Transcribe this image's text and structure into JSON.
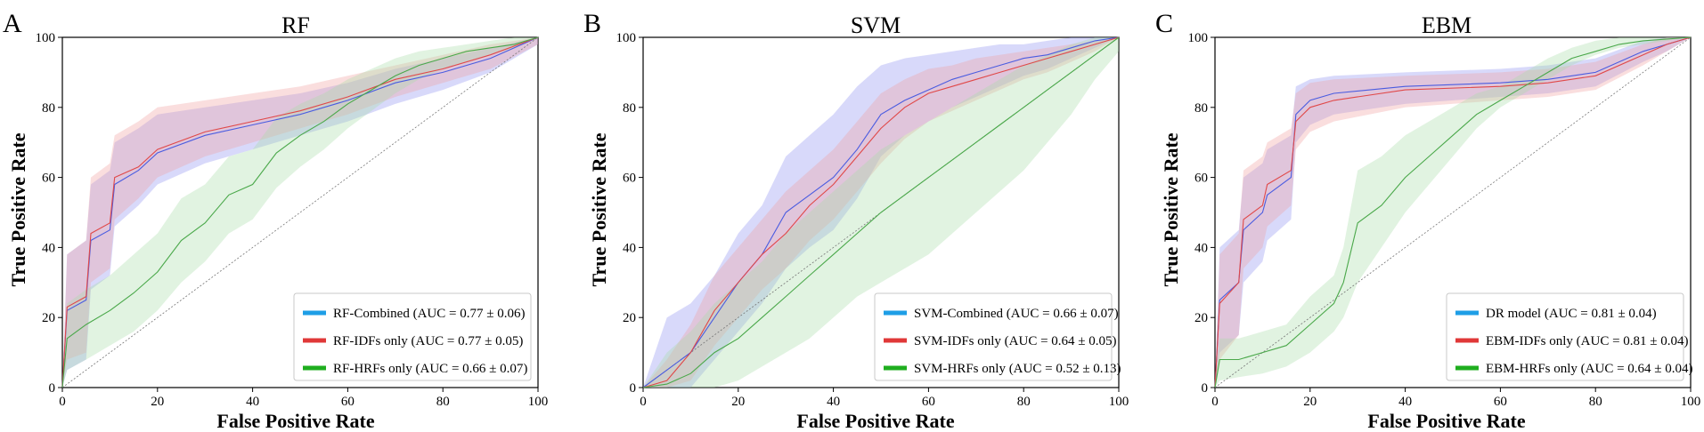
{
  "chart_data": [
    {
      "type": "line",
      "panel_label": "A",
      "title": "RF",
      "xlabel": "False Positive Rate",
      "ylabel": "True Positive Rate",
      "xlim": [
        0,
        100
      ],
      "ylim": [
        0,
        100
      ],
      "xticks": [
        "0",
        "20",
        "40",
        "60",
        "80",
        "100"
      ],
      "yticks": [
        "0",
        "20",
        "40",
        "60",
        "80",
        "100"
      ],
      "legend_position": "lower-right",
      "series": [
        {
          "name": "RF-Combined",
          "legend": "RF-Combined (AUC = 0.77 ± 0.06)",
          "color": "#1e9ee6",
          "line_color": "#4a5ce0",
          "band_color": "#8f93f0",
          "x": [
            0,
            1,
            5,
            6,
            10,
            11,
            16,
            20,
            30,
            40,
            50,
            60,
            70,
            80,
            90,
            100
          ],
          "y": [
            0,
            22,
            25,
            42,
            45,
            58,
            62,
            67,
            72,
            75,
            78,
            82,
            87,
            90,
            94,
            100
          ],
          "lo": [
            0,
            5,
            8,
            28,
            32,
            46,
            52,
            58,
            64,
            68,
            72,
            76,
            81,
            85,
            90,
            98
          ],
          "hi": [
            0,
            38,
            42,
            58,
            62,
            70,
            74,
            78,
            80,
            82,
            84,
            87,
            91,
            94,
            97,
            100
          ]
        },
        {
          "name": "RF-IDFs only",
          "legend": "RF-IDFs only (AUC = 0.77 ± 0.05)",
          "color": "#e03838",
          "line_color": "#e04848",
          "band_color": "#f2a0a0",
          "x": [
            0,
            1,
            5,
            6,
            10,
            11,
            16,
            20,
            30,
            40,
            50,
            60,
            70,
            80,
            90,
            100
          ],
          "y": [
            0,
            23,
            26,
            44,
            47,
            60,
            63,
            68,
            73,
            76,
            79,
            83,
            88,
            91,
            95,
            100
          ],
          "lo": [
            0,
            8,
            10,
            30,
            34,
            48,
            54,
            60,
            66,
            70,
            74,
            78,
            83,
            87,
            91,
            98
          ],
          "hi": [
            0,
            38,
            42,
            60,
            64,
            72,
            76,
            80,
            82,
            84,
            86,
            89,
            92,
            95,
            98,
            100
          ]
        },
        {
          "name": "RF-HRFs only",
          "legend": "RF-HRFs only (AUC = 0.66 ± 0.07)",
          "color": "#1fae1f",
          "line_color": "#4aa84a",
          "band_color": "#a8dca8",
          "x": [
            0,
            1,
            5,
            10,
            15,
            20,
            25,
            30,
            35,
            40,
            45,
            50,
            55,
            60,
            65,
            70,
            75,
            80,
            85,
            90,
            95,
            100
          ],
          "y": [
            0,
            14,
            18,
            22,
            27,
            33,
            42,
            47,
            55,
            58,
            67,
            72,
            76,
            81,
            85,
            89,
            92,
            94,
            96,
            97,
            98,
            100
          ],
          "lo": [
            0,
            5,
            8,
            12,
            16,
            22,
            30,
            36,
            44,
            48,
            57,
            63,
            68,
            74,
            79,
            84,
            88,
            91,
            93,
            95,
            97,
            100
          ],
          "hi": [
            0,
            24,
            28,
            32,
            38,
            44,
            54,
            58,
            66,
            68,
            77,
            81,
            84,
            88,
            91,
            94,
            96,
            97,
            98,
            99,
            100,
            100
          ]
        }
      ]
    },
    {
      "type": "line",
      "panel_label": "B",
      "title": "SVM",
      "xlabel": "False Positive Rate",
      "ylabel": "True Positive Rate",
      "xlim": [
        0,
        100
      ],
      "ylim": [
        0,
        100
      ],
      "xticks": [
        "0",
        "20",
        "40",
        "60",
        "80",
        "100"
      ],
      "yticks": [
        "0",
        "20",
        "40",
        "60",
        "80",
        "100"
      ],
      "legend_position": "lower-right",
      "series": [
        {
          "name": "SVM-Combined",
          "legend": "SVM-Combined (AUC = 0.66 ± 0.07)",
          "color": "#1e9ee6",
          "line_color": "#4a5ce0",
          "band_color": "#8f93f0",
          "x": [
            0,
            5,
            10,
            15,
            20,
            25,
            30,
            35,
            40,
            45,
            50,
            55,
            60,
            65,
            70,
            75,
            80,
            85,
            90,
            95,
            100
          ],
          "y": [
            0,
            5,
            10,
            20,
            30,
            38,
            50,
            55,
            60,
            68,
            78,
            82,
            85,
            88,
            90,
            92,
            94,
            95,
            97,
            99,
            100
          ],
          "lo": [
            0,
            0,
            0,
            8,
            16,
            24,
            34,
            40,
            45,
            54,
            66,
            72,
            76,
            80,
            83,
            86,
            89,
            91,
            94,
            97,
            100
          ],
          "hi": [
            0,
            20,
            24,
            32,
            44,
            52,
            66,
            72,
            78,
            86,
            92,
            94,
            95,
            96,
            97,
            98,
            98,
            99,
            100,
            100,
            100
          ]
        },
        {
          "name": "SVM-IDFs only",
          "legend": "SVM-IDFs only (AUC = 0.64 ± 0.05)",
          "color": "#e03838",
          "line_color": "#e04848",
          "band_color": "#f2a0a0",
          "x": [
            0,
            5,
            10,
            15,
            20,
            25,
            30,
            35,
            40,
            45,
            50,
            55,
            60,
            65,
            70,
            75,
            80,
            85,
            90,
            95,
            100
          ],
          "y": [
            0,
            2,
            10,
            22,
            30,
            38,
            44,
            52,
            58,
            66,
            74,
            80,
            84,
            86,
            88,
            90,
            92,
            94,
            96,
            98,
            100
          ],
          "lo": [
            0,
            0,
            2,
            12,
            20,
            28,
            34,
            42,
            48,
            56,
            64,
            71,
            76,
            79,
            82,
            85,
            88,
            90,
            93,
            96,
            100
          ],
          "hi": [
            0,
            8,
            18,
            32,
            40,
            48,
            56,
            62,
            68,
            76,
            84,
            88,
            91,
            92,
            94,
            95,
            96,
            97,
            98,
            99,
            100
          ]
        },
        {
          "name": "SVM-HRFs only",
          "legend": "SVM-HRFs only (AUC = 0.52 ± 0.13)",
          "color": "#1fae1f",
          "line_color": "#4aa84a",
          "band_color": "#a8dca8",
          "x": [
            0,
            5,
            10,
            15,
            20,
            25,
            30,
            35,
            40,
            45,
            50,
            55,
            60,
            65,
            70,
            75,
            80,
            85,
            90,
            95,
            100
          ],
          "y": [
            0,
            1,
            4,
            10,
            14,
            20,
            26,
            32,
            38,
            44,
            50,
            55,
            60,
            65,
            70,
            75,
            80,
            85,
            90,
            95,
            100
          ],
          "lo": [
            0,
            0,
            0,
            0,
            2,
            6,
            10,
            14,
            20,
            26,
            30,
            34,
            38,
            44,
            50,
            56,
            62,
            70,
            78,
            88,
            96
          ],
          "hi": [
            0,
            10,
            16,
            24,
            30,
            36,
            44,
            50,
            56,
            62,
            68,
            72,
            76,
            80,
            84,
            88,
            92,
            95,
            98,
            100,
            100
          ]
        }
      ]
    },
    {
      "type": "line",
      "panel_label": "C",
      "title": "EBM",
      "xlabel": "False Positive Rate",
      "ylabel": "True Positive Rate",
      "xlim": [
        0,
        100
      ],
      "ylim": [
        0,
        100
      ],
      "xticks": [
        "0",
        "20",
        "40",
        "60",
        "80",
        "100"
      ],
      "yticks": [
        "0",
        "20",
        "40",
        "60",
        "80",
        "100"
      ],
      "legend_position": "lower-right",
      "series": [
        {
          "name": "DR model",
          "legend": "DR model (AUC = 0.81 ± 0.04)",
          "color": "#1e9ee6",
          "line_color": "#4a5ce0",
          "band_color": "#8f93f0",
          "x": [
            0,
            1,
            5,
            6,
            10,
            11,
            16,
            17,
            20,
            25,
            40,
            60,
            70,
            80,
            90,
            95,
            100
          ],
          "y": [
            0,
            25,
            30,
            45,
            50,
            55,
            60,
            78,
            82,
            84,
            86,
            87,
            88,
            90,
            96,
            98,
            100
          ],
          "lo": [
            0,
            10,
            15,
            30,
            36,
            42,
            48,
            70,
            75,
            78,
            81,
            83,
            84,
            86,
            93,
            96,
            100
          ],
          "hi": [
            0,
            40,
            45,
            60,
            64,
            68,
            72,
            86,
            88,
            89,
            90,
            91,
            92,
            94,
            99,
            100,
            100
          ]
        },
        {
          "name": "EBM-IDFs only",
          "legend": "EBM-IDFs only (AUC = 0.81 ± 0.04)",
          "color": "#e03838",
          "line_color": "#e04848",
          "band_color": "#f2a0a0",
          "x": [
            0,
            1,
            5,
            6,
            10,
            11,
            16,
            17,
            20,
            25,
            40,
            60,
            70,
            80,
            90,
            95,
            100
          ],
          "y": [
            0,
            24,
            30,
            48,
            52,
            58,
            62,
            76,
            80,
            82,
            85,
            86,
            87,
            89,
            95,
            98,
            100
          ],
          "lo": [
            0,
            8,
            15,
            34,
            40,
            46,
            52,
            68,
            73,
            76,
            80,
            82,
            83,
            85,
            92,
            96,
            100
          ],
          "hi": [
            0,
            38,
            44,
            62,
            66,
            70,
            74,
            84,
            87,
            88,
            89,
            90,
            91,
            93,
            98,
            100,
            100
          ]
        },
        {
          "name": "EBM-HRFs only",
          "legend": "EBM-HRFs only (AUC = 0.64 ± 0.04)",
          "color": "#1fae1f",
          "line_color": "#4aa84a",
          "band_color": "#a8dca8",
          "x": [
            0,
            1,
            5,
            10,
            15,
            20,
            25,
            27,
            30,
            35,
            40,
            45,
            50,
            55,
            60,
            65,
            70,
            75,
            80,
            85,
            90,
            100
          ],
          "y": [
            0,
            8,
            8,
            10,
            12,
            18,
            24,
            30,
            47,
            52,
            60,
            66,
            72,
            78,
            82,
            86,
            90,
            94,
            96,
            98,
            99,
            100
          ],
          "lo": [
            0,
            2,
            3,
            4,
            6,
            10,
            16,
            20,
            30,
            40,
            50,
            58,
            66,
            74,
            80,
            84,
            88,
            92,
            95,
            97,
            98,
            100
          ],
          "hi": [
            0,
            14,
            14,
            16,
            18,
            26,
            32,
            40,
            62,
            66,
            72,
            76,
            80,
            84,
            86,
            90,
            94,
            97,
            99,
            100,
            100,
            100
          ]
        }
      ]
    }
  ]
}
